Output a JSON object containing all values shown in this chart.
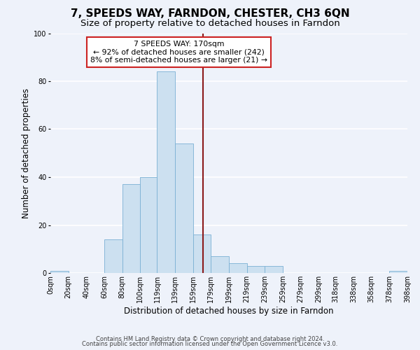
{
  "title": "7, SPEEDS WAY, FARNDON, CHESTER, CH3 6QN",
  "subtitle": "Size of property relative to detached houses in Farndon",
  "xlabel": "Distribution of detached houses by size in Farndon",
  "ylabel": "Number of detached properties",
  "bin_edges": [
    0,
    20,
    40,
    60,
    80,
    100,
    119,
    139,
    159,
    179,
    199,
    219,
    239,
    259,
    279,
    299,
    318,
    338,
    358,
    378,
    398
  ],
  "bar_heights": [
    1,
    0,
    0,
    14,
    37,
    40,
    84,
    54,
    16,
    7,
    4,
    3,
    3,
    0,
    0,
    0,
    0,
    0,
    0,
    1
  ],
  "bar_color": "#cce0f0",
  "bar_edge_color": "#7ab0d4",
  "vline_x": 170,
  "vline_color": "#8b1a1a",
  "annotation_title": "7 SPEEDS WAY: 170sqm",
  "annotation_line1": "← 92% of detached houses are smaller (242)",
  "annotation_line2": "8% of semi-detached houses are larger (21) →",
  "annotation_box_facecolor": "#ffffff",
  "annotation_box_edgecolor": "#cc2222",
  "ylim": [
    0,
    100
  ],
  "yticks": [
    0,
    20,
    40,
    60,
    80,
    100
  ],
  "tick_labels": [
    "0sqm",
    "20sqm",
    "40sqm",
    "60sqm",
    "80sqm",
    "100sqm",
    "119sqm",
    "139sqm",
    "159sqm",
    "179sqm",
    "199sqm",
    "219sqm",
    "239sqm",
    "259sqm",
    "279sqm",
    "299sqm",
    "318sqm",
    "338sqm",
    "358sqm",
    "378sqm",
    "398sqm"
  ],
  "footer1": "Contains HM Land Registry data © Crown copyright and database right 2024.",
  "footer2": "Contains public sector information licensed under the Open Government Licence v3.0.",
  "bg_color": "#eef2fa",
  "plot_bg_color": "#eef2fa",
  "grid_color": "#ffffff",
  "title_fontsize": 11,
  "subtitle_fontsize": 9.5,
  "axis_label_fontsize": 8.5,
  "tick_fontsize": 7,
  "annotation_fontsize": 7.8,
  "footer_fontsize": 6
}
